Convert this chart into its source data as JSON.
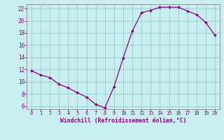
{
  "x": [
    0,
    1,
    2,
    3,
    4,
    5,
    6,
    7,
    8,
    9,
    10,
    11,
    12,
    13,
    14,
    15,
    16,
    17,
    18,
    19,
    20
  ],
  "y": [
    11.8,
    11.1,
    10.7,
    9.6,
    9.0,
    8.2,
    7.5,
    6.3,
    5.7,
    9.2,
    13.9,
    18.3,
    21.3,
    21.7,
    22.2,
    22.2,
    22.2,
    21.6,
    21.0,
    19.7,
    17.6
  ],
  "line_color": "#880088",
  "marker_color": "#880088",
  "bg_color": "#c8eef0",
  "grid_color": "#99cccc",
  "xlabel": "Windchill (Refroidissement éolien,°C)",
  "xlabel_color": "#880088",
  "tick_color": "#880088",
  "spine_color": "#888888",
  "ylim": [
    5.5,
    22.7
  ],
  "xlim": [
    -0.5,
    20.5
  ],
  "yticks": [
    6,
    8,
    10,
    12,
    14,
    16,
    18,
    20,
    22
  ],
  "xticks": [
    0,
    1,
    2,
    3,
    4,
    5,
    6,
    7,
    8,
    9,
    10,
    11,
    12,
    13,
    14,
    15,
    16,
    17,
    18,
    19,
    20
  ]
}
